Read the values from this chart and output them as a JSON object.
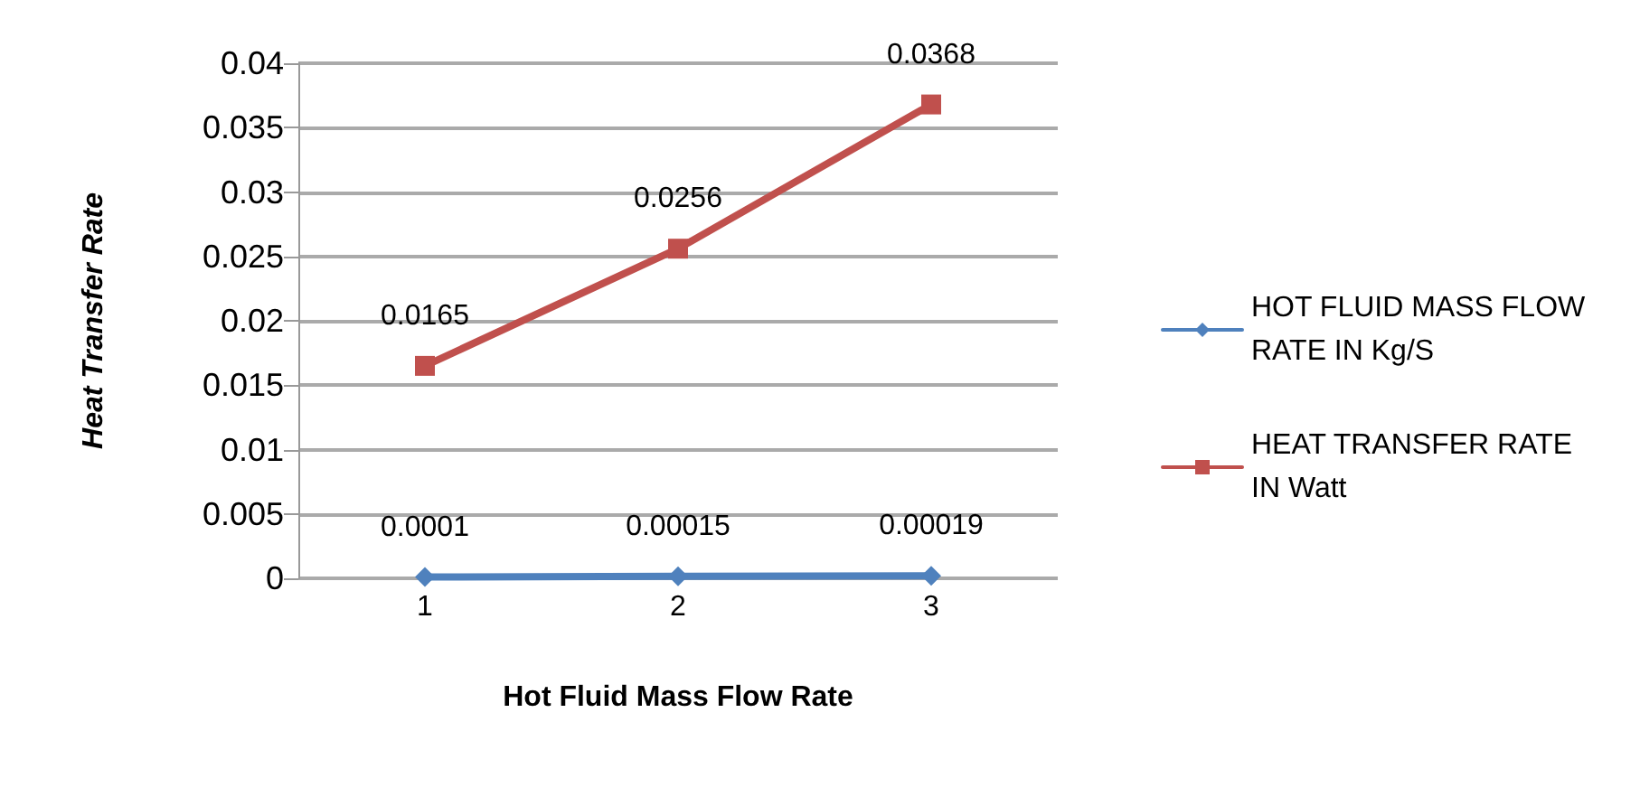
{
  "chart_data": {
    "type": "line",
    "xlabel": "Hot Fluid Mass Flow Rate",
    "ylabel": "Heat Transfer Rate",
    "categories": [
      "1",
      "2",
      "3"
    ],
    "series": [
      {
        "name": "HOT FLUID MASS FLOW RATE IN Kg/S",
        "color": "#4f81bd",
        "marker": "diamond",
        "values": [
          0.0001,
          0.00015,
          0.00019
        ]
      },
      {
        "name": "HEAT TRANSFER RATE IN Watt",
        "color": "#c0504d",
        "marker": "square",
        "values": [
          0.0165,
          0.0256,
          0.0368
        ]
      }
    ],
    "ylim": [
      0,
      0.04
    ],
    "yticks": [
      0,
      0.005,
      0.01,
      0.015,
      0.02,
      0.025,
      0.03,
      0.035,
      0.04
    ],
    "grid": true,
    "legend": "right",
    "data_labels": true
  }
}
